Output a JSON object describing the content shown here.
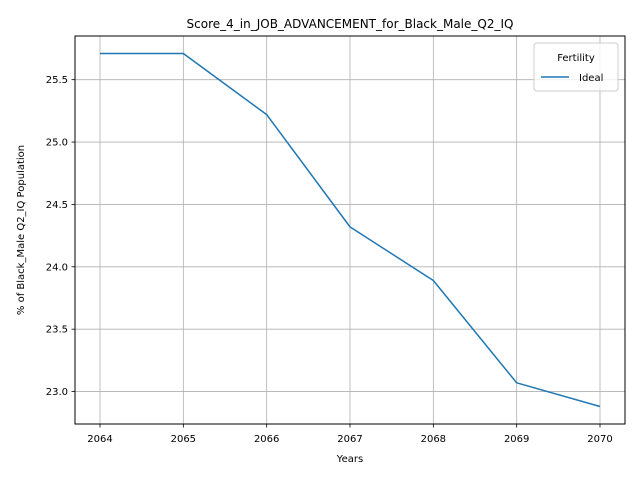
{
  "chart_data": {
    "type": "line",
    "title": "Score_4_in_JOB_ADVANCEMENT_for_Black_Male_Q2_IQ",
    "xlabel": "Years",
    "ylabel": "% of Black_Male Q2_IQ Population",
    "x": [
      2064,
      2065,
      2066,
      2067,
      2068,
      2069,
      2070
    ],
    "xticks": [
      "2064",
      "2065",
      "2066",
      "2067",
      "2068",
      "2069",
      "2070"
    ],
    "yticks": [
      "23.0",
      "23.5",
      "24.0",
      "24.5",
      "25.0",
      "25.5"
    ],
    "ytick_values": [
      23.0,
      23.5,
      24.0,
      24.5,
      25.0,
      25.5
    ],
    "xlim": [
      2063.7,
      2070.3
    ],
    "ylim": [
      22.74,
      25.85
    ],
    "grid": true,
    "legend": {
      "title": "Fertility",
      "position": "top-right"
    },
    "series": [
      {
        "name": "Ideal",
        "color": "#1f77b4",
        "values": [
          25.71,
          25.71,
          25.22,
          24.32,
          23.89,
          23.07,
          22.88
        ]
      }
    ]
  }
}
